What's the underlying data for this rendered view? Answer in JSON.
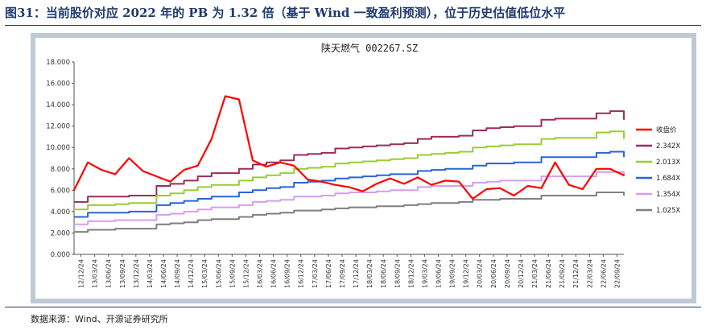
{
  "figure": {
    "title": "图31：当前股价对应 2022 年的 PB 为 1.32 倍（基于 Wind 一致盈利预测），位于历史估值低位水平",
    "source": "数据来源：Wind、开源证券研究所"
  },
  "chart_data": {
    "type": "line",
    "title": "陕天燃气 002267.SZ",
    "xlabel": "",
    "ylabel": "",
    "ylim": [
      0,
      18
    ],
    "yticks": [
      "0.000",
      "2.000",
      "4.000",
      "6.000",
      "8.000",
      "10.000",
      "12.000",
      "14.000",
      "16.000",
      "18.000"
    ],
    "x_tick_labels": [
      "12/12/24",
      "13/03/24",
      "13/06/24",
      "13/09/24",
      "13/12/24",
      "14/03/24",
      "14/06/24",
      "14/09/24",
      "14/12/24",
      "15/03/24",
      "15/06/24",
      "15/09/24",
      "15/12/24",
      "16/03/24",
      "16/06/24",
      "16/09/24",
      "16/12/24",
      "17/03/24",
      "17/06/24",
      "17/09/24",
      "17/12/24",
      "18/03/24",
      "18/06/24",
      "18/09/24",
      "18/12/24",
      "19/03/24",
      "19/06/24",
      "19/09/24",
      "19/12/24",
      "20/03/24",
      "20/06/24",
      "20/09/24",
      "20/12/24",
      "21/03/24",
      "21/06/24",
      "21/09/24",
      "21/12/24",
      "22/03/24",
      "22/06/24",
      "22/09/24"
    ],
    "grid": false,
    "legend_position": "right",
    "x_months": [
      0,
      3,
      6,
      9,
      12,
      15,
      18,
      21,
      24,
      27,
      30,
      33,
      36,
      39,
      42,
      45,
      48,
      51,
      54,
      57,
      60,
      63,
      66,
      69,
      72,
      75,
      78,
      81,
      84,
      87,
      90,
      93,
      96,
      99,
      102,
      105,
      108,
      111,
      114,
      117,
      120
    ],
    "series": [
      {
        "name": "收盘价",
        "color": "#ff0000",
        "width": 2.2,
        "values": [
          6.0,
          8.6,
          7.9,
          7.5,
          9.0,
          7.8,
          7.3,
          6.8,
          7.9,
          8.3,
          10.8,
          14.8,
          14.5,
          8.8,
          8.2,
          8.6,
          8.3,
          7.0,
          6.8,
          6.5,
          6.3,
          5.9,
          6.6,
          7.1,
          6.6,
          7.2,
          6.5,
          6.9,
          6.8,
          5.2,
          6.1,
          6.2,
          5.5,
          6.4,
          6.2,
          8.6,
          6.5,
          6.1,
          8.0,
          8.0,
          7.4
        ]
      },
      {
        "name": "2.342X",
        "color": "#9b2d5a",
        "width": 2,
        "values": [
          4.9,
          5.4,
          5.4,
          5.4,
          5.5,
          5.5,
          6.4,
          6.6,
          6.9,
          7.3,
          7.6,
          7.6,
          8.0,
          8.4,
          8.6,
          8.8,
          9.3,
          9.4,
          9.5,
          9.9,
          10.0,
          10.1,
          10.2,
          10.3,
          10.4,
          10.8,
          11.0,
          11.0,
          11.1,
          11.6,
          11.8,
          11.9,
          12.0,
          12.0,
          12.6,
          12.7,
          12.7,
          12.7,
          13.2,
          13.4,
          12.6
        ]
      },
      {
        "name": "2.013X",
        "color": "#9acd32",
        "width": 2,
        "values": [
          4.2,
          4.6,
          4.6,
          4.7,
          4.8,
          4.8,
          5.5,
          5.7,
          6.0,
          6.3,
          6.5,
          6.5,
          6.9,
          7.2,
          7.4,
          7.6,
          8.0,
          8.1,
          8.2,
          8.5,
          8.6,
          8.7,
          8.8,
          8.9,
          9.0,
          9.3,
          9.4,
          9.5,
          9.6,
          10.0,
          10.1,
          10.2,
          10.3,
          10.3,
          10.8,
          10.9,
          10.9,
          10.9,
          11.4,
          11.5,
          10.8
        ]
      },
      {
        "name": "1.684X",
        "color": "#2a63d9",
        "width": 2,
        "values": [
          3.5,
          3.9,
          3.9,
          3.9,
          4.0,
          4.0,
          4.6,
          4.8,
          5.0,
          5.2,
          5.4,
          5.4,
          5.8,
          6.0,
          6.2,
          6.3,
          6.7,
          6.8,
          6.9,
          7.1,
          7.2,
          7.3,
          7.4,
          7.5,
          7.5,
          7.8,
          7.9,
          8.0,
          8.0,
          8.3,
          8.5,
          8.5,
          8.6,
          8.6,
          9.1,
          9.1,
          9.1,
          9.1,
          9.5,
          9.6,
          9.1
        ]
      },
      {
        "name": "1.354X",
        "color": "#d49ef0",
        "width": 2,
        "values": [
          2.8,
          3.1,
          3.1,
          3.2,
          3.2,
          3.2,
          3.7,
          3.8,
          4.0,
          4.2,
          4.4,
          4.4,
          4.6,
          4.9,
          5.0,
          5.1,
          5.4,
          5.4,
          5.5,
          5.7,
          5.8,
          5.8,
          5.9,
          6.0,
          6.0,
          6.3,
          6.4,
          6.4,
          6.4,
          6.7,
          6.8,
          6.9,
          6.9,
          6.9,
          7.3,
          7.3,
          7.3,
          7.3,
          7.7,
          7.7,
          7.3
        ]
      },
      {
        "name": "1.025X",
        "color": "#7f7f7f",
        "width": 2,
        "values": [
          2.1,
          2.3,
          2.3,
          2.4,
          2.4,
          2.4,
          2.8,
          2.9,
          3.0,
          3.2,
          3.3,
          3.3,
          3.5,
          3.7,
          3.8,
          3.9,
          4.1,
          4.1,
          4.2,
          4.3,
          4.4,
          4.4,
          4.5,
          4.5,
          4.6,
          4.7,
          4.8,
          4.8,
          4.9,
          5.1,
          5.1,
          5.2,
          5.2,
          5.2,
          5.5,
          5.5,
          5.5,
          5.5,
          5.8,
          5.8,
          5.5
        ]
      }
    ]
  }
}
